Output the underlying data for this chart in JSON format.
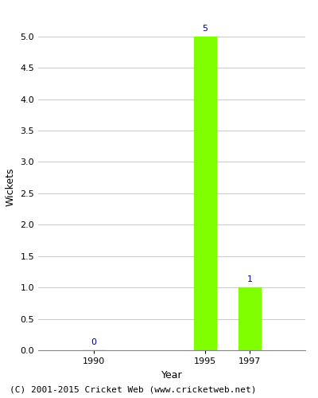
{
  "years": [
    1990,
    1995,
    1997
  ],
  "wickets": [
    0,
    5,
    1
  ],
  "bar_color": "#7fff00",
  "bar_width": 1.0,
  "xlabel": "Year",
  "ylabel": "Wickets",
  "ylim": [
    0,
    5.2
  ],
  "yticks": [
    0.0,
    0.5,
    1.0,
    1.5,
    2.0,
    2.5,
    3.0,
    3.5,
    4.0,
    4.5,
    5.0
  ],
  "label_color": "#000080",
  "label_fontsize": 8,
  "axis_label_fontsize": 9,
  "tick_fontsize": 8,
  "footer_text": "(C) 2001-2015 Cricket Web (www.cricketweb.net)",
  "footer_fontsize": 8,
  "background_color": "#ffffff",
  "grid_color": "#cccccc",
  "xlim": [
    1987.5,
    1999.5
  ]
}
